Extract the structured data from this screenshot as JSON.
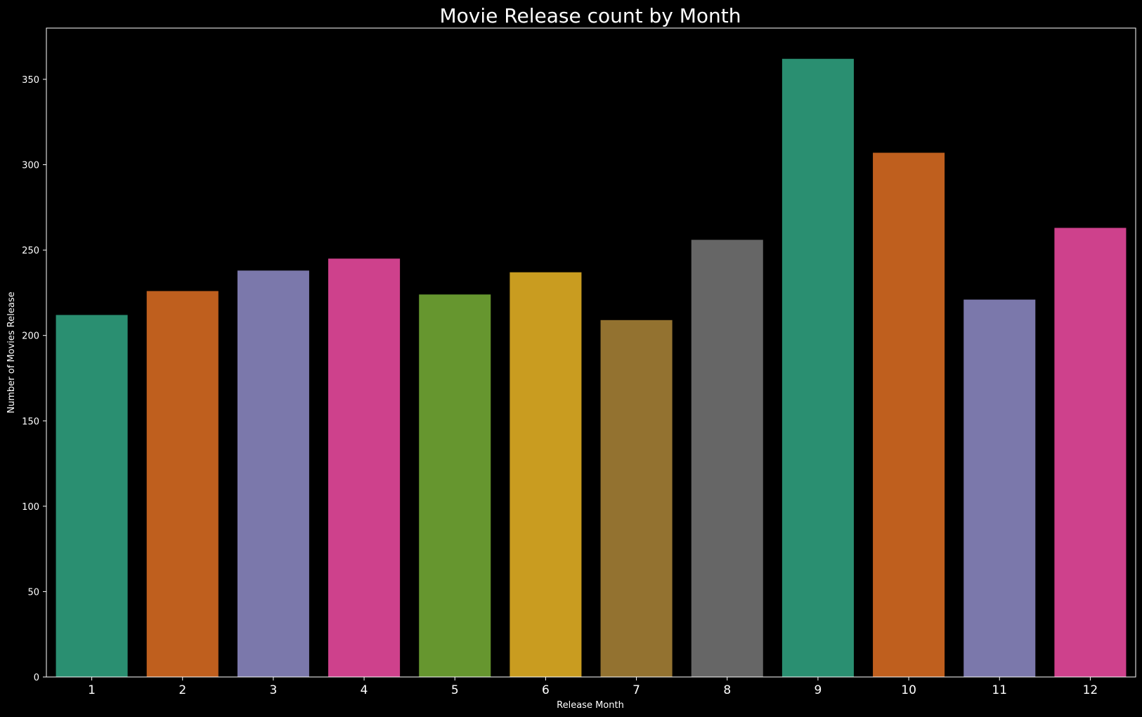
{
  "chart_data": {
    "type": "bar",
    "title": "Movie Release count by Month",
    "xlabel": "Release Month",
    "ylabel": "Number of Movies Release",
    "categories": [
      "1",
      "2",
      "3",
      "4",
      "5",
      "6",
      "7",
      "8",
      "9",
      "10",
      "11",
      "12"
    ],
    "values": [
      212,
      226,
      238,
      245,
      224,
      237,
      209,
      256,
      362,
      307,
      221,
      263
    ],
    "colors": [
      "#2a8f71",
      "#bf5f1e",
      "#7b78ab",
      "#ce418c",
      "#66962f",
      "#c99c20",
      "#937230",
      "#666666",
      "#2a8f71",
      "#bf5f1e",
      "#7b78ab",
      "#ce418c"
    ],
    "yticks": [
      0,
      50,
      100,
      150,
      200,
      250,
      300,
      350
    ],
    "ylim": [
      0,
      380
    ],
    "grid": false,
    "legend": "none",
    "background": "#000000",
    "text_color": "#ffffff"
  }
}
